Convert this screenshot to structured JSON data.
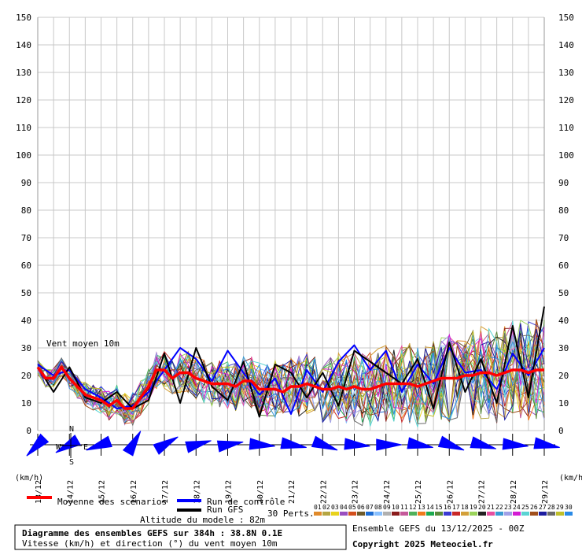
{
  "chart_data": {
    "type": "line",
    "unit_left": "(km/h)",
    "unit_right": "(km/h)",
    "y_range": [
      0,
      150
    ],
    "y_ticks": [
      0,
      10,
      20,
      30,
      40,
      50,
      60,
      70,
      80,
      90,
      100,
      110,
      120,
      130,
      140,
      150
    ],
    "grid": true,
    "x_range_hours": [
      0,
      384
    ],
    "dates": [
      "13/12",
      "14/12",
      "15/12",
      "16/12",
      "17/12",
      "18/12",
      "19/12",
      "20/12",
      "21/12",
      "22/12",
      "23/12",
      "24/12",
      "25/12",
      "26/12",
      "27/12",
      "28/12",
      "29/12"
    ],
    "series_label": "Vent moyen 10m",
    "compass": {
      "north": "N",
      "west": "W",
      "east": "E",
      "south": "S"
    },
    "mean_series": {
      "name": "Moyenne des scénarios",
      "color": "#ff0000",
      "x_hours": [
        0,
        6,
        12,
        18,
        24,
        30,
        36,
        42,
        48,
        54,
        60,
        66,
        72,
        78,
        84,
        90,
        96,
        102,
        108,
        114,
        120,
        126,
        132,
        138,
        144,
        150,
        156,
        162,
        168,
        174,
        180,
        186,
        192,
        198,
        204,
        210,
        216,
        222,
        228,
        234,
        240,
        246,
        252,
        258,
        264,
        270,
        276,
        282,
        288,
        294,
        300,
        306,
        312,
        318,
        324,
        330,
        336,
        342,
        348,
        354,
        360,
        366,
        372,
        378,
        384
      ],
      "values": [
        23,
        19,
        19,
        23,
        19,
        16,
        13,
        12,
        11,
        9,
        11,
        8,
        8,
        12,
        16,
        22,
        22,
        19,
        21,
        21,
        19,
        18,
        17,
        17,
        17,
        16,
        18,
        18,
        15,
        15,
        15,
        14,
        16,
        16,
        17,
        16,
        15,
        15,
        16,
        15,
        16,
        15,
        15,
        16,
        17,
        17,
        17,
        17,
        16,
        17,
        18,
        19,
        19,
        19,
        20,
        20,
        21,
        21,
        20,
        21,
        22,
        22,
        21,
        22,
        22
      ]
    },
    "control_series": {
      "name": "Run de contrôle",
      "color": "#0000ff",
      "x_hours": [
        0,
        12,
        24,
        36,
        48,
        60,
        72,
        84,
        96,
        108,
        120,
        132,
        144,
        156,
        168,
        180,
        192,
        204,
        216,
        228,
        240,
        252,
        264,
        276,
        288,
        300,
        312,
        324,
        336,
        348,
        360,
        372,
        384
      ],
      "values": [
        24,
        20,
        22,
        15,
        12,
        8,
        9,
        14,
        22,
        30,
        26,
        18,
        29,
        21,
        13,
        19,
        6,
        22,
        14,
        25,
        31,
        22,
        29,
        14,
        24,
        17,
        30,
        21,
        22,
        15,
        28,
        20,
        30
      ]
    },
    "gfs_series": {
      "name": "Run GFS",
      "color": "#000000",
      "x_hours": [
        0,
        12,
        24,
        36,
        48,
        60,
        72,
        84,
        96,
        108,
        120,
        132,
        144,
        156,
        168,
        180,
        192,
        204,
        216,
        228,
        240,
        252,
        264,
        276,
        288,
        300,
        312,
        324,
        336,
        348,
        360,
        372,
        384
      ],
      "values": [
        23,
        14,
        23,
        12,
        10,
        14,
        8,
        11,
        28,
        10,
        30,
        16,
        11,
        25,
        5,
        24,
        21,
        12,
        21,
        9,
        29,
        25,
        21,
        17,
        26,
        8,
        32,
        14,
        26,
        10,
        38,
        12,
        45
      ]
    },
    "perturbations_label": "30 Perts.",
    "perturbation_ids": [
      "01",
      "02",
      "03",
      "04",
      "05",
      "06",
      "07",
      "08",
      "09",
      "10",
      "11",
      "12",
      "13",
      "14",
      "15",
      "16",
      "17",
      "18",
      "19",
      "20",
      "21",
      "22",
      "23",
      "24",
      "25",
      "26",
      "27",
      "28",
      "29",
      "30"
    ],
    "perturbation_colors": [
      "#e08a2a",
      "#b5a642",
      "#e8d21c",
      "#9a4fc0",
      "#d34f1c",
      "#6d5a2a",
      "#1c6cd3",
      "#88c0ff",
      "#b0b0b0",
      "#8a1c1c",
      "#c45a9a",
      "#4fb05a",
      "#f07a1c",
      "#1caa4f",
      "#5a8a3a",
      "#3a3ad3",
      "#c82828",
      "#d3a03a",
      "#9ad35a",
      "#222222",
      "#e64fa0",
      "#3a9ad3",
      "#a0a0e6",
      "#d31cd3",
      "#5ad3d3",
      "#a04f1c",
      "#1c1ca0",
      "#6a6a6a",
      "#c0c02a",
      "#2a8ae6"
    ]
  },
  "legend": {
    "mean": "Moyenne des scénarios",
    "control": "Run de contrôle",
    "gfs": "Run GFS",
    "altitude": "Altitude du modele : 82m"
  },
  "footer": {
    "title": "Diagramme des ensembles GEFS sur 384h : 38.8N 0.1E",
    "subtitle": "Vitesse (km/h) et direction (°) du vent moyen 10m",
    "ensemble": "Ensemble GEFS du 13/12/2025 - 00Z",
    "copyright": "Copyright 2025 Meteociel.fr"
  },
  "colors": {
    "grid": "#c8c8c8",
    "arrow_fill": "#0000ff",
    "mean": "#ff0000",
    "control": "#0000ff",
    "gfs": "#000000"
  }
}
